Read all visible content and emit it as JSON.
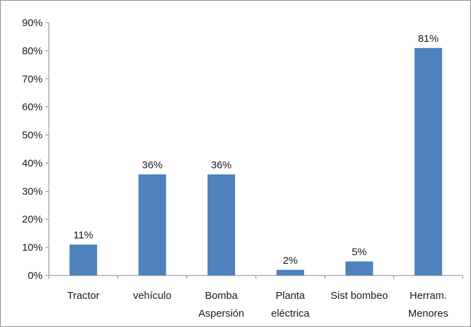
{
  "chart_data": {
    "type": "bar",
    "categories": [
      [
        "Tractor"
      ],
      [
        "vehículo"
      ],
      [
        "Bomba",
        "Aspersión"
      ],
      [
        "Planta",
        "eléctrica"
      ],
      [
        "Sist bombeo"
      ],
      [
        "Herram.",
        "Menores"
      ]
    ],
    "values": [
      11,
      36,
      36,
      2,
      5,
      81
    ],
    "data_labels": [
      "11%",
      "36%",
      "36%",
      "2%",
      "5%",
      "81%"
    ],
    "y_ticks": [
      "0%",
      "10%",
      "20%",
      "30%",
      "40%",
      "50%",
      "60%",
      "70%",
      "80%",
      "90%"
    ],
    "ylim": [
      0,
      90
    ],
    "ystep": 10,
    "grid": false,
    "legend": "none",
    "bar_color": "#4f81bd"
  }
}
